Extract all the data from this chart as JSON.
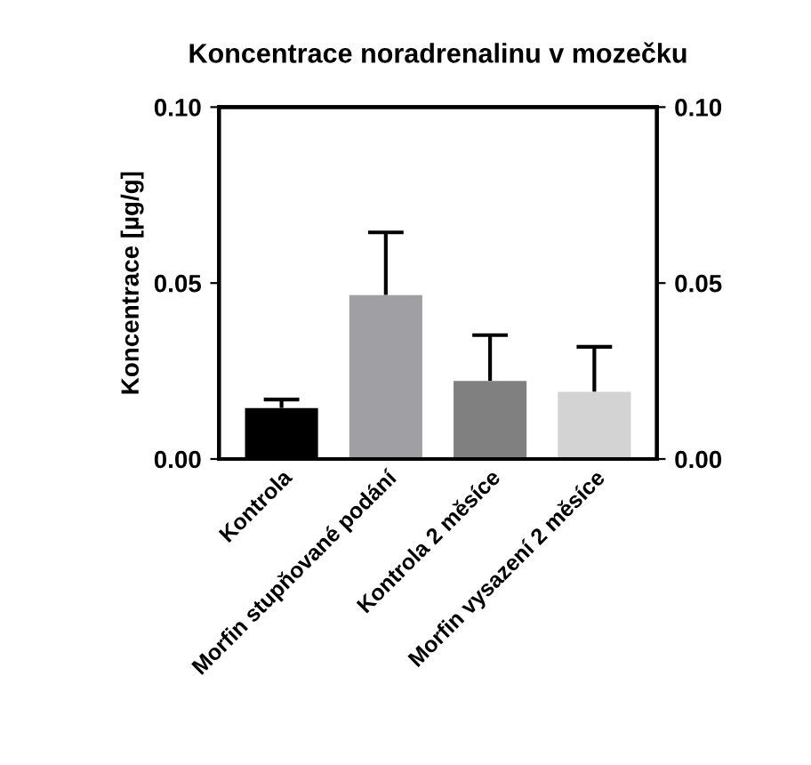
{
  "chart_data": {
    "type": "bar",
    "title": "Koncentrace noradrenalinu v mozečku",
    "ylabel": "Koncentrace [µg/g]",
    "categories": [
      "Kontrola",
      "Morfin stupňované podání",
      "Kontrola 2 měsíce",
      "Morfin vysazení 2 měsíce"
    ],
    "values": [
      0.0145,
      0.0466,
      0.0222,
      0.0191
    ],
    "colors": [
      "#000000",
      "#a0a0a4",
      "#808080",
      "#d3d3d3"
    ],
    "errors": [
      [
        0.0145,
        0.0169
      ],
      [
        0.0466,
        0.0644
      ],
      [
        0.0222,
        0.0352
      ],
      [
        0.0191,
        0.0319
      ]
    ],
    "ylim": [
      0,
      0.1
    ],
    "yticks": [
      {
        "value": 0,
        "label": "0.00"
      },
      {
        "value": 0.05,
        "label": "0.05"
      },
      {
        "value": 0.1,
        "label": "0.10"
      }
    ],
    "y2lim": [
      0,
      0.1
    ],
    "y2ticks": [
      {
        "value": 0,
        "label": "0.00"
      },
      {
        "value": 0.05,
        "label": "0.05"
      },
      {
        "value": 0.1,
        "label": "0.10"
      }
    ],
    "grid": false,
    "legend": false
  }
}
